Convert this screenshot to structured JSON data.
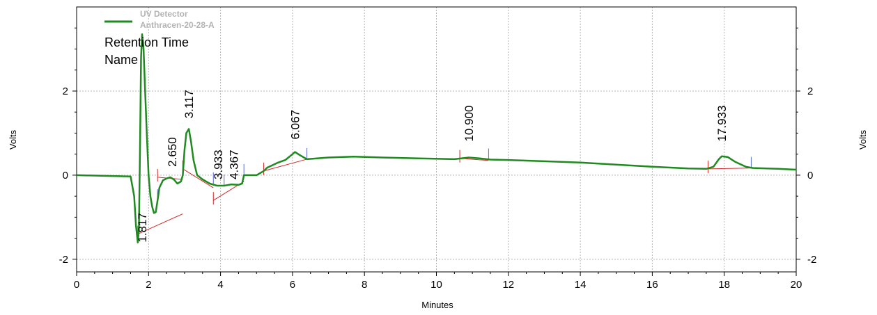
{
  "chart_data": {
    "type": "line",
    "xlabel": "Minutes",
    "ylabel": "Volts",
    "ylabel_right": "Volts",
    "xlim": [
      0,
      20
    ],
    "ylim": [
      -2.3,
      4.0
    ],
    "x_ticks": [
      0,
      2,
      4,
      6,
      8,
      10,
      12,
      14,
      16,
      18,
      20
    ],
    "x_tick_labels": [
      "0",
      "2",
      "4",
      "6",
      "8",
      "10",
      "12",
      "14",
      "16",
      "18",
      "20"
    ],
    "y_ticks": [
      -2,
      0,
      2
    ],
    "y_tick_labels": [
      "-2",
      "0",
      "2"
    ],
    "grid": true,
    "legend": {
      "placement": "top-left",
      "entries": [
        "UV Detector",
        "Anthracen-20-28-A"
      ],
      "annotation_lines": [
        "Retention Time",
        "Name"
      ]
    },
    "colors": {
      "trace": "#1f8a1f",
      "baseline": "#d42a2a",
      "marker": "#5a6ad8",
      "grid": "#b4b4b4"
    },
    "series": [
      {
        "name": "UV Detector",
        "x": [
          0,
          0.5,
          1.0,
          1.5,
          1.6,
          1.65,
          1.7,
          1.73,
          1.76,
          1.79,
          1.82,
          1.86,
          1.9,
          1.95,
          2.0,
          2.05,
          2.1,
          2.15,
          2.2,
          2.25,
          2.3,
          2.4,
          2.5,
          2.6,
          2.7,
          2.8,
          2.9,
          2.95,
          3.0,
          3.05,
          3.12,
          3.18,
          3.25,
          3.35,
          3.5,
          3.7,
          3.9,
          4.1,
          4.3,
          4.5,
          4.6,
          4.65,
          5.0,
          5.2,
          5.3,
          5.4,
          5.6,
          5.8,
          6.0,
          6.07,
          6.2,
          6.4,
          7.0,
          7.7,
          8.5,
          9.5,
          10.5,
          10.9,
          11.2,
          11.5,
          12.0,
          13.0,
          14.0,
          15.0,
          16.0,
          17.0,
          17.5,
          17.7,
          17.85,
          17.93,
          18.1,
          18.3,
          18.6,
          18.8,
          19.5,
          20.0
        ],
        "values": [
          0.0,
          -0.01,
          -0.02,
          -0.03,
          -0.5,
          -1.2,
          -1.6,
          -1.3,
          0.5,
          2.8,
          3.35,
          3.0,
          2.1,
          1.0,
          0.0,
          -0.5,
          -0.75,
          -0.9,
          -0.88,
          -0.6,
          -0.3,
          -0.12,
          -0.08,
          -0.05,
          -0.1,
          -0.2,
          -0.15,
          0.0,
          0.6,
          1.0,
          1.1,
          0.8,
          0.35,
          0.0,
          -0.1,
          -0.2,
          -0.25,
          -0.25,
          -0.22,
          -0.23,
          -0.2,
          0.0,
          0.0,
          0.1,
          0.18,
          0.22,
          0.3,
          0.36,
          0.5,
          0.55,
          0.48,
          0.38,
          0.42,
          0.44,
          0.42,
          0.4,
          0.38,
          0.42,
          0.4,
          0.37,
          0.36,
          0.33,
          0.3,
          0.25,
          0.2,
          0.16,
          0.15,
          0.2,
          0.38,
          0.45,
          0.43,
          0.32,
          0.2,
          0.17,
          0.15,
          0.13
        ]
      }
    ],
    "peaks": [
      {
        "label": "1.817",
        "x": 1.817,
        "y": -1.6,
        "start": 1.7,
        "end": 2.25
      },
      {
        "label": "2.650",
        "x": 2.65,
        "y": 0.2,
        "start": 2.25,
        "end": 2.95
      },
      {
        "label": "3.117",
        "x": 3.117,
        "y": 1.35,
        "start": 2.95,
        "end": 3.8
      },
      {
        "label": "3.933",
        "x": 3.933,
        "y": -0.1,
        "start": 3.8,
        "end": 4.1
      },
      {
        "label": "4.367",
        "x": 4.367,
        "y": -0.1,
        "start": 4.1,
        "end": 4.65
      },
      {
        "label": "6.067",
        "x": 6.067,
        "y": 0.85,
        "start": 5.2,
        "end": 6.4
      },
      {
        "label": "10.900",
        "x": 10.9,
        "y": 0.8,
        "start": 10.65,
        "end": 11.45
      },
      {
        "label": "17.933",
        "x": 17.933,
        "y": 0.8,
        "start": 17.55,
        "end": 18.75
      }
    ],
    "baselines": [
      {
        "x": [
          1.7,
          2.95
        ],
        "y": [
          -1.4,
          -0.92
        ]
      },
      {
        "x": [
          2.25,
          2.95
        ],
        "y": [
          -0.05,
          -0.1
        ]
      },
      {
        "x": [
          2.95,
          3.8
        ],
        "y": [
          0.15,
          -0.3
        ]
      },
      {
        "x": [
          3.8,
          4.65
        ],
        "y": [
          -0.6,
          -0.15
        ]
      },
      {
        "x": [
          5.2,
          6.4
        ],
        "y": [
          0.1,
          0.38
        ]
      },
      {
        "x": [
          10.65,
          11.45
        ],
        "y": [
          0.4,
          0.35
        ]
      },
      {
        "x": [
          17.55,
          18.75
        ],
        "y": [
          0.15,
          0.17
        ]
      }
    ]
  }
}
